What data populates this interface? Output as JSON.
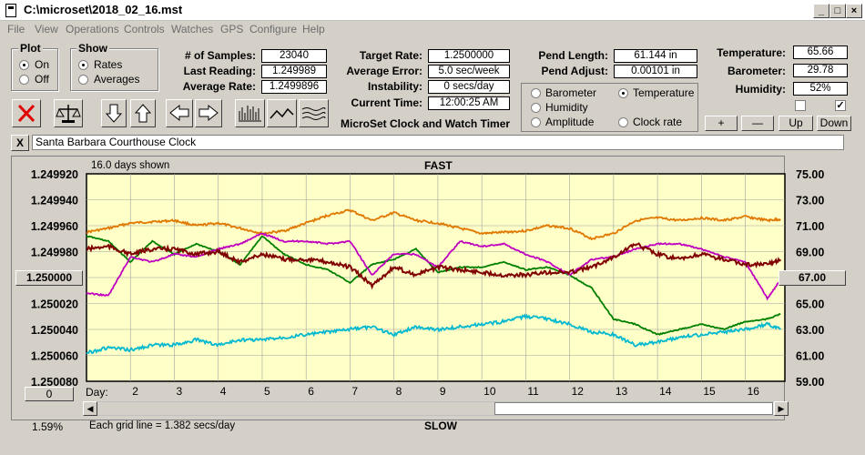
{
  "window": {
    "title": "C:\\microset\\2018_02_16.mst"
  },
  "menu": [
    "File",
    "View",
    "Operations",
    "Controls",
    "Watches",
    "GPS",
    "Configure",
    "Help"
  ],
  "plot_group": {
    "label": "Plot",
    "on": "On",
    "off": "Off",
    "selected": "On"
  },
  "show_group": {
    "label": "Show",
    "rates": "Rates",
    "averages": "Averages",
    "selected": "Rates"
  },
  "stats": {
    "samples_label": "# of Samples:",
    "samples": "23040",
    "last_label": "Last Reading:",
    "last": "1.249989",
    "avg_label": "Average Rate:",
    "avg": "1.2499896",
    "target_label": "Target Rate:",
    "target": "1.2500000",
    "avgerr_label": "Average Error:",
    "avgerr": "5.0 sec/week",
    "instab_label": "Instability:",
    "instab": "0 secs/day",
    "time_label": "Current Time:",
    "time": "12:00:25 AM",
    "pendlen_label": "Pend Length:",
    "pendlen": "61.144 in",
    "pendadj_label": "Pend Adjust:",
    "pendadj": "0.00101 in",
    "temp_label": "Temperature:",
    "temp": "65.66",
    "baro_label": "Barometer:",
    "baro": "29.78",
    "hum_label": "Humidity:",
    "hum": "52%"
  },
  "app_caption": "MicroSet Clock and Watch Timer",
  "overlay": {
    "barometer": "Barometer",
    "temperature": "Temperature",
    "humidity": "Humidity",
    "amplitude": "Amplitude",
    "clock_rate": "Clock rate",
    "selected": "Temperature",
    "colors": {
      "barometer": "#e07800",
      "temperature": "#008000",
      "humidity": "#c000c0",
      "amplitude": "#00b8d0",
      "clock_rate": "#800000"
    }
  },
  "adjust_buttons": {
    "plus": "+",
    "minus": "—",
    "up": "Up",
    "down": "Down"
  },
  "clock_name": "Santa Barbara Courthouse Clock",
  "close_x": "X",
  "chart_header": {
    "days_shown": "16.0 days shown",
    "fast": "FAST",
    "slow": "SLOW",
    "grid_note": "Each grid line = 1.382 secs/day",
    "pct": "1.59%",
    "left_button": "1.250000",
    "right_button": "67.00",
    "bottom_button": "0",
    "day_label": "Day:"
  },
  "icons": [
    "cancel-icon",
    "balance-icon",
    "arrow-down-icon",
    "arrow-up-icon",
    "arrow-left-icon",
    "arrow-right-icon",
    "histogram-icon",
    "wave-icon",
    "lines-icon"
  ],
  "chart_data": {
    "type": "line",
    "y_left_ticks": [
      "1.249920",
      "1.249940",
      "1.249960",
      "1.249980",
      "1.250000",
      "1.250020",
      "1.250040",
      "1.250060",
      "1.250080"
    ],
    "y_right_ticks": [
      "75.00",
      "73.00",
      "71.00",
      "69.00",
      "67.00",
      "65.00",
      "63.00",
      "61.00",
      "59.00"
    ],
    "x_ticks": [
      "2",
      "3",
      "4",
      "5",
      "6",
      "7",
      "8",
      "9",
      "10",
      "11",
      "12",
      "13",
      "14",
      "15",
      "16"
    ],
    "xlim": [
      1.0,
      16.9
    ],
    "ylim_left": [
      1.24992,
      1.25008
    ],
    "series": [
      {
        "name": "Barometer",
        "color": "#e07800",
        "x": [
          1,
          1.5,
          2,
          2.5,
          3,
          3.5,
          4,
          4.5,
          5,
          5.5,
          6,
          6.5,
          7,
          7.5,
          8,
          8.5,
          9,
          9.5,
          10,
          10.5,
          11,
          11.5,
          12,
          12.5,
          13,
          13.5,
          14,
          14.5,
          15,
          15.5,
          16,
          16.5,
          16.8
        ],
        "y": [
          1.249965,
          1.249962,
          1.249958,
          1.249957,
          1.249956,
          1.24996,
          1.249958,
          1.249962,
          1.249966,
          1.249964,
          1.249958,
          1.249952,
          1.249948,
          1.249956,
          1.24995,
          1.249956,
          1.249958,
          1.249962,
          1.249966,
          1.249965,
          1.249964,
          1.24996,
          1.249962,
          1.24997,
          1.249966,
          1.249956,
          1.249954,
          1.249956,
          1.249954,
          1.249956,
          1.249953,
          1.249956,
          1.249955
        ]
      },
      {
        "name": "Temperature",
        "color": "#008000",
        "x": [
          1,
          1.5,
          2,
          2.5,
          3,
          3.5,
          4,
          4.5,
          5,
          5.5,
          6,
          6.5,
          7,
          7.5,
          8,
          8.5,
          9,
          9.5,
          10,
          10.5,
          11,
          11.5,
          12,
          12.5,
          13,
          13.5,
          14,
          14.5,
          15,
          15.5,
          16,
          16.5,
          16.8
        ],
        "y": [
          1.249968,
          1.249972,
          1.249988,
          1.249972,
          1.249982,
          1.249974,
          1.24998,
          1.24999,
          1.249968,
          1.249982,
          1.24999,
          1.249994,
          1.250004,
          1.24999,
          1.249986,
          1.249978,
          1.249996,
          1.249992,
          1.249992,
          1.249988,
          1.249994,
          1.249992,
          1.249998,
          1.250008,
          1.250032,
          1.250036,
          1.250044,
          1.25004,
          1.250036,
          1.25004,
          1.250034,
          1.250032,
          1.250028
        ]
      },
      {
        "name": "Humidity",
        "color": "#c000c0",
        "x": [
          1,
          1.5,
          2,
          2.5,
          3,
          3.5,
          4,
          4.5,
          5,
          5.5,
          6,
          6.5,
          7,
          7.5,
          8,
          8.5,
          9,
          9.5,
          10,
          10.5,
          11,
          11.5,
          12,
          12.5,
          13,
          13.5,
          14,
          14.5,
          15,
          15.5,
          16,
          16.5,
          16.8
        ],
        "y": [
          1.250012,
          1.250014,
          1.249984,
          1.249988,
          1.249982,
          1.249984,
          1.249978,
          1.249974,
          1.249966,
          1.249972,
          1.249972,
          1.249974,
          1.249972,
          1.249998,
          1.249982,
          1.249982,
          1.249992,
          1.249972,
          1.249976,
          1.249974,
          1.249982,
          1.249988,
          1.249998,
          1.249986,
          1.249984,
          1.249978,
          1.249974,
          1.249974,
          1.249978,
          1.249984,
          1.249988,
          1.250016,
          1.250002
        ]
      },
      {
        "name": "Clock rate",
        "color": "#800000",
        "x": [
          1,
          1.5,
          2,
          2.5,
          3,
          3.5,
          4,
          4.5,
          5,
          5.5,
          6,
          6.5,
          7,
          7.5,
          8,
          8.5,
          9,
          9.5,
          10,
          10.5,
          11,
          11.5,
          12,
          12.5,
          13,
          13.5,
          14,
          14.5,
          15,
          15.5,
          16,
          16.5,
          16.8
        ],
        "y": [
          1.249978,
          1.249976,
          1.249982,
          1.249978,
          1.249978,
          1.249982,
          1.24998,
          1.249988,
          1.249982,
          1.249986,
          1.249986,
          1.249988,
          1.249992,
          1.250006,
          1.249992,
          1.249998,
          1.249992,
          1.249994,
          1.249996,
          1.249998,
          1.249998,
          1.249996,
          1.249996,
          1.249992,
          1.249984,
          1.249974,
          1.249982,
          1.249986,
          1.249982,
          1.249986,
          1.24999,
          1.24999,
          1.249986
        ]
      },
      {
        "name": "Amplitude",
        "color": "#00b8d0",
        "x": [
          1,
          1.5,
          2,
          2.5,
          3,
          3.5,
          4,
          4.5,
          5,
          5.5,
          6,
          6.5,
          7,
          7.5,
          8,
          8.5,
          9,
          9.5,
          10,
          10.5,
          11,
          11.5,
          12,
          12.5,
          13,
          13.5,
          14,
          14.5,
          15,
          15.5,
          16,
          16.5,
          16.8
        ],
        "y": [
          1.250058,
          1.250054,
          1.250056,
          1.250052,
          1.250052,
          1.250048,
          1.250052,
          1.250048,
          1.250048,
          1.250046,
          1.250044,
          1.250042,
          1.25004,
          1.250038,
          1.250044,
          1.250038,
          1.25004,
          1.250038,
          1.250036,
          1.250034,
          1.25003,
          1.250032,
          1.250036,
          1.250042,
          1.250044,
          1.250052,
          1.25005,
          1.250046,
          1.250044,
          1.250042,
          1.25004,
          1.250036,
          1.25004
        ]
      }
    ]
  }
}
